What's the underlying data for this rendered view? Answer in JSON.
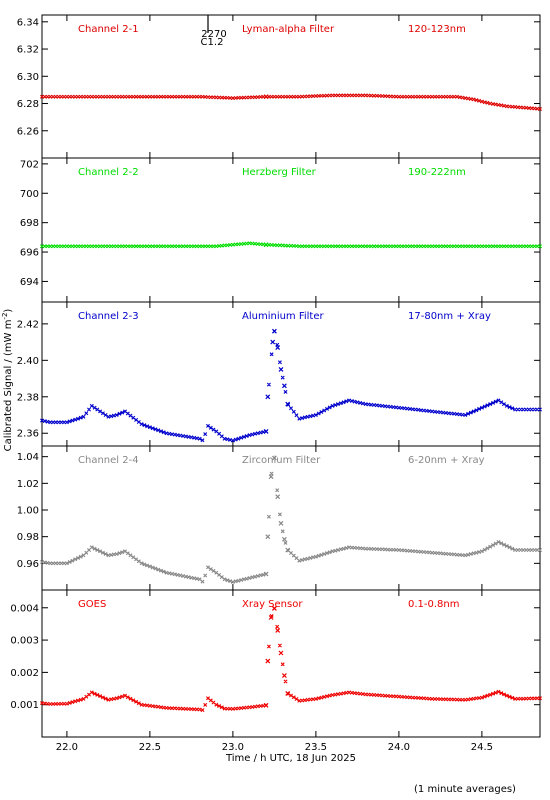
{
  "figure": {
    "ylabel": "Calibrated Signal / (mW m",
    "ylabel_exp": "-2",
    "ylabel_end": ")",
    "xlabel": "Time / h UTC, 18 Jun 2025",
    "footnote": "(1 minute averages)",
    "flare_marker": {
      "x": 22.85,
      "label_top": "2270",
      "label_bottom": "C1.2"
    },
    "x_ticks": [
      22.0,
      22.5,
      23.0,
      23.5,
      24.0,
      24.5
    ],
    "x_tick_labels": [
      "22.0",
      "22.5",
      "23.0",
      "23.5",
      "24.0",
      "24.5"
    ]
  },
  "chart_data": [
    {
      "type": "scatter",
      "labels": [
        "Channel 2-1",
        "Lyman-alpha Filter",
        "120-123nm"
      ],
      "color": "#dd0000",
      "xlim": [
        21.85,
        24.85
      ],
      "ylim": [
        6.24,
        6.345
      ],
      "yticks": [
        6.26,
        6.28,
        6.3,
        6.32,
        6.34
      ],
      "ytick_labels": [
        "6.26",
        "6.28",
        "6.30",
        "6.32",
        "6.34"
      ],
      "series": [
        {
          "x": [
            21.85,
            22.0,
            22.2,
            22.4,
            22.6,
            22.8,
            23.0,
            23.2,
            23.4,
            23.6,
            23.8,
            24.0,
            24.2,
            24.35,
            24.45,
            24.55,
            24.65,
            24.75,
            24.85
          ],
          "y": [
            6.285,
            6.285,
            6.285,
            6.285,
            6.285,
            6.285,
            6.284,
            6.285,
            6.285,
            6.286,
            6.286,
            6.285,
            6.285,
            6.285,
            6.283,
            6.28,
            6.278,
            6.277,
            6.276
          ]
        }
      ]
    },
    {
      "type": "scatter",
      "labels": [
        "Channel 2-2",
        "Herzberg Filter",
        "190-222nm"
      ],
      "color": "#00dd00",
      "xlim": [
        21.85,
        24.85
      ],
      "ylim": [
        692.6,
        702.4
      ],
      "yticks": [
        694,
        696,
        698,
        700,
        702
      ],
      "ytick_labels": [
        "694",
        "696",
        "698",
        "700",
        "702"
      ],
      "series": [
        {
          "x": [
            21.85,
            22.2,
            22.6,
            22.9,
            23.0,
            23.1,
            23.2,
            23.4,
            23.8,
            24.2,
            24.5,
            24.85
          ],
          "y": [
            696.4,
            696.4,
            696.4,
            696.4,
            696.5,
            696.6,
            696.5,
            696.4,
            696.4,
            696.4,
            696.4,
            696.4
          ]
        }
      ]
    },
    {
      "type": "scatter",
      "labels": [
        "Channel 2-3",
        "Aluminium Filter",
        "17-80nm + Xray"
      ],
      "color": "#0000cc",
      "xlim": [
        21.85,
        24.85
      ],
      "ylim": [
        2.353,
        2.432
      ],
      "yticks": [
        2.36,
        2.38,
        2.4,
        2.42
      ],
      "ytick_labels": [
        "2.36",
        "2.38",
        "2.40",
        "2.42"
      ],
      "series": [
        {
          "x": [
            21.85,
            21.9,
            22.0,
            22.1,
            22.15,
            22.25,
            22.3,
            22.35,
            22.45,
            22.6,
            22.8,
            22.82,
            22.85,
            22.9,
            22.95,
            23.0,
            23.1,
            23.2,
            23.21,
            23.24,
            23.25,
            23.27,
            23.29,
            23.31,
            23.33,
            23.4,
            23.5,
            23.6,
            23.7,
            23.8,
            24.0,
            24.2,
            24.4,
            24.5,
            24.6,
            24.65,
            24.7,
            24.85
          ],
          "y": [
            2.367,
            2.366,
            2.366,
            2.369,
            2.375,
            2.369,
            2.37,
            2.372,
            2.365,
            2.36,
            2.357,
            2.356,
            2.364,
            2.361,
            2.357,
            2.356,
            2.359,
            2.361,
            2.38,
            2.41,
            2.416,
            2.407,
            2.395,
            2.386,
            2.376,
            2.368,
            2.37,
            2.375,
            2.378,
            2.376,
            2.374,
            2.372,
            2.37,
            2.374,
            2.378,
            2.375,
            2.373,
            2.373
          ]
        }
      ]
    },
    {
      "type": "scatter",
      "labels": [
        "Channel 2-4",
        "Zirconium Filter",
        "6-20nm + Xray"
      ],
      "color": "#888888",
      "xlim": [
        21.85,
        24.85
      ],
      "ylim": [
        0.94,
        1.048
      ],
      "yticks": [
        0.96,
        0.98,
        1.0,
        1.02,
        1.04
      ],
      "ytick_labels": [
        "0.96",
        "0.98",
        "1.00",
        "1.02",
        "1.04"
      ],
      "series": [
        {
          "x": [
            21.85,
            21.9,
            22.0,
            22.1,
            22.15,
            22.25,
            22.3,
            22.35,
            22.45,
            22.6,
            22.8,
            22.82,
            22.85,
            22.9,
            22.95,
            23.0,
            23.1,
            23.2,
            23.21,
            23.23,
            23.25,
            23.27,
            23.29,
            23.31,
            23.33,
            23.4,
            23.5,
            23.6,
            23.7,
            23.8,
            24.0,
            24.2,
            24.4,
            24.5,
            24.6,
            24.65,
            24.7,
            24.85
          ],
          "y": [
            0.961,
            0.96,
            0.96,
            0.966,
            0.972,
            0.966,
            0.967,
            0.969,
            0.96,
            0.953,
            0.948,
            0.946,
            0.957,
            0.953,
            0.948,
            0.946,
            0.949,
            0.952,
            0.98,
            1.025,
            1.039,
            1.01,
            0.99,
            0.978,
            0.97,
            0.962,
            0.965,
            0.969,
            0.972,
            0.971,
            0.97,
            0.968,
            0.966,
            0.969,
            0.976,
            0.973,
            0.97,
            0.97
          ]
        }
      ]
    },
    {
      "type": "scatter",
      "labels": [
        "GOES",
        "Xray Sensor",
        "0.1-0.8nm"
      ],
      "color": "#ee0000",
      "xlim": [
        21.85,
        24.85
      ],
      "ylim": [
        0.0,
        0.00455
      ],
      "yticks": [
        0.001,
        0.002,
        0.003,
        0.004
      ],
      "ytick_labels": [
        "0.001",
        "0.002",
        "0.003",
        "0.004"
      ],
      "series": [
        {
          "x": [
            21.85,
            21.9,
            22.0,
            22.1,
            22.15,
            22.25,
            22.3,
            22.35,
            22.45,
            22.6,
            22.8,
            22.82,
            22.85,
            22.9,
            22.95,
            23.0,
            23.1,
            23.2,
            23.21,
            23.23,
            23.25,
            23.27,
            23.29,
            23.31,
            23.33,
            23.4,
            23.5,
            23.6,
            23.7,
            23.8,
            24.0,
            24.2,
            24.4,
            24.5,
            24.6,
            24.65,
            24.7,
            24.85
          ],
          "y": [
            0.00105,
            0.00102,
            0.00103,
            0.00118,
            0.00138,
            0.00115,
            0.0012,
            0.00128,
            0.001,
            0.0009,
            0.00085,
            0.00083,
            0.0012,
            0.001,
            0.00088,
            0.00087,
            0.00092,
            0.00098,
            0.00235,
            0.0037,
            0.00398,
            0.0033,
            0.0026,
            0.0019,
            0.00135,
            0.00112,
            0.00118,
            0.0013,
            0.00138,
            0.00132,
            0.00125,
            0.00118,
            0.00115,
            0.00122,
            0.0014,
            0.00128,
            0.00118,
            0.0012
          ]
        }
      ]
    }
  ]
}
